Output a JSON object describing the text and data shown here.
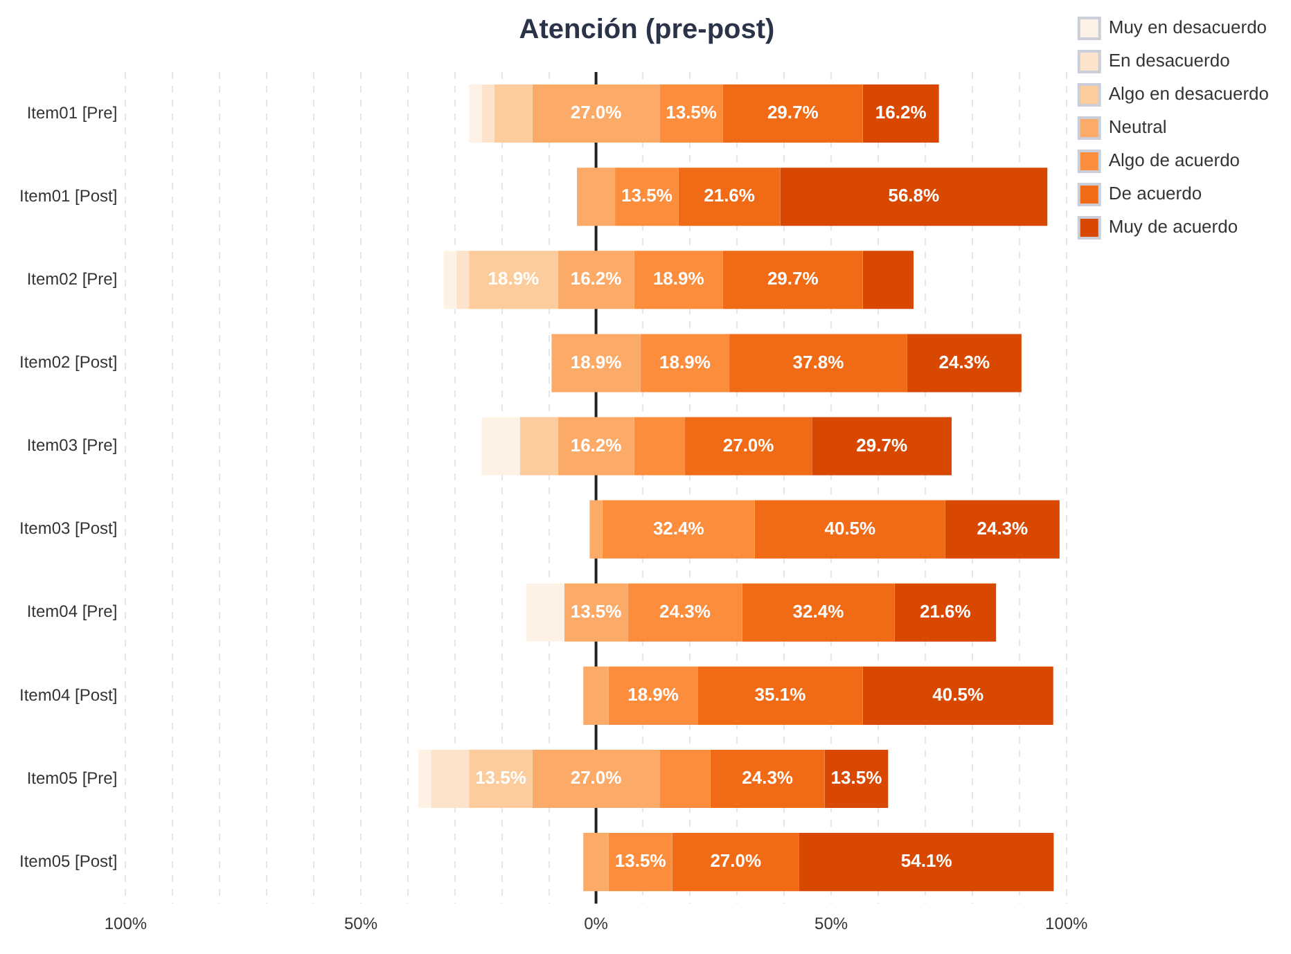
{
  "chart_data": {
    "type": "bar",
    "orientation": "horizontal",
    "title": "Atención (pre-post)",
    "categories": [
      "Item01 [Pre]",
      "Item01 [Post]",
      "Item02 [Pre]",
      "Item02 [Post]",
      "Item03 [Pre]",
      "Item03 [Post]",
      "Item04 [Pre]",
      "Item04 [Post]",
      "Item05 [Pre]",
      "Item05 [Post]"
    ],
    "series": [
      {
        "name": "Muy en desacuerdo",
        "color": "#fef2e6",
        "values": [
          2.7,
          null,
          2.7,
          null,
          8.1,
          null,
          8.1,
          null,
          2.7,
          null
        ],
        "base": [
          -27.0,
          null,
          -32.4,
          null,
          -24.3,
          null,
          -14.85,
          null,
          -37.8,
          null
        ],
        "value_labels": [
          null,
          null,
          null,
          null,
          null,
          null,
          null,
          null,
          null,
          null
        ]
      },
      {
        "name": "En desacuerdo",
        "color": "#fde3cb",
        "values": [
          2.7,
          null,
          2.7,
          null,
          null,
          null,
          null,
          null,
          8.1,
          null
        ],
        "base": [
          -24.3,
          null,
          -29.7,
          null,
          null,
          null,
          null,
          null,
          -35.1,
          null
        ],
        "value_labels": [
          null,
          null,
          null,
          null,
          null,
          null,
          null,
          null,
          null,
          null
        ]
      },
      {
        "name": "Algo en desacuerdo",
        "color": "#fdcc9c",
        "values": [
          8.1,
          null,
          18.9,
          null,
          8.1,
          null,
          null,
          null,
          13.5,
          null
        ],
        "base": [
          -21.6,
          null,
          -27.0,
          null,
          -16.2,
          null,
          null,
          null,
          -27.0,
          null
        ],
        "value_labels": [
          null,
          null,
          "18.9%",
          null,
          null,
          null,
          null,
          null,
          "13.5%",
          null
        ]
      },
      {
        "name": "Neutral",
        "color": "#fcaa68",
        "values": [
          27.0,
          8.1,
          16.2,
          18.9,
          16.2,
          2.7,
          13.5,
          5.4,
          27.0,
          5.4
        ],
        "base": [
          -13.5,
          -4.05,
          -8.1,
          -9.45,
          -8.1,
          -1.35,
          -6.75,
          -2.7,
          -13.5,
          -2.7
        ],
        "value_labels": [
          "27.0%",
          null,
          "16.2%",
          "18.9%",
          "16.2%",
          null,
          "13.5%",
          null,
          "27.0%",
          null
        ]
      },
      {
        "name": "Algo de acuerdo",
        "color": "#fb8d3d",
        "values": [
          13.5,
          13.5,
          18.9,
          18.9,
          10.8,
          32.4,
          24.3,
          18.9,
          10.8,
          13.5
        ],
        "base": [
          13.5,
          4.05,
          8.1,
          9.45,
          8.1,
          1.35,
          6.75,
          2.7,
          13.5,
          2.7
        ],
        "value_labels": [
          "13.5%",
          "13.5%",
          "18.9%",
          "18.9%",
          null,
          "32.4%",
          "24.3%",
          "18.9%",
          null,
          "13.5%"
        ]
      },
      {
        "name": "De acuerdo",
        "color": "#f16a15",
        "values": [
          29.7,
          21.6,
          29.7,
          37.8,
          27.0,
          40.5,
          32.4,
          35.1,
          24.3,
          27.0
        ],
        "base": [
          27.0,
          17.55,
          27.0,
          28.35,
          18.9,
          33.75,
          31.05,
          21.6,
          24.3,
          16.2
        ],
        "value_labels": [
          "29.7%",
          "21.6%",
          "29.7%",
          "37.8%",
          "27.0%",
          "40.5%",
          "32.4%",
          "35.1%",
          "24.3%",
          "27.0%"
        ]
      },
      {
        "name": "Muy de acuerdo",
        "color": "#d94801",
        "values": [
          16.2,
          56.8,
          10.8,
          24.3,
          29.7,
          24.3,
          21.6,
          40.5,
          13.5,
          54.1
        ],
        "base": [
          56.7,
          39.15,
          56.7,
          66.15,
          45.9,
          74.25,
          63.45,
          56.7,
          48.6,
          43.2
        ],
        "value_labels": [
          "16.2%",
          "56.8%",
          null,
          "24.3%",
          "29.7%",
          "24.3%",
          "21.6%",
          "40.5%",
          "13.5%",
          "54.1%"
        ]
      }
    ],
    "xlim": [
      -100,
      100
    ],
    "xticks": [
      {
        "value": -100,
        "label": "100%"
      },
      {
        "value": -90,
        "label": null
      },
      {
        "value": -80,
        "label": null
      },
      {
        "value": -70,
        "label": null
      },
      {
        "value": -60,
        "label": null
      },
      {
        "value": -50,
        "label": "50%"
      },
      {
        "value": -40,
        "label": null
      },
      {
        "value": -30,
        "label": null
      },
      {
        "value": -20,
        "label": null
      },
      {
        "value": -10,
        "label": null
      },
      {
        "value": 0,
        "label": "0%"
      },
      {
        "value": 10,
        "label": null
      },
      {
        "value": 20,
        "label": null
      },
      {
        "value": 30,
        "label": null
      },
      {
        "value": 40,
        "label": null
      },
      {
        "value": 50,
        "label": "50%"
      },
      {
        "value": 60,
        "label": null
      },
      {
        "value": 70,
        "label": null
      },
      {
        "value": 80,
        "label": null
      },
      {
        "value": 90,
        "label": null
      },
      {
        "value": 100,
        "label": "100%"
      }
    ],
    "ref_lines": [
      {
        "axis": "x",
        "value": 0,
        "color": "#222222"
      }
    ],
    "grid": "x",
    "legend": "top right"
  }
}
